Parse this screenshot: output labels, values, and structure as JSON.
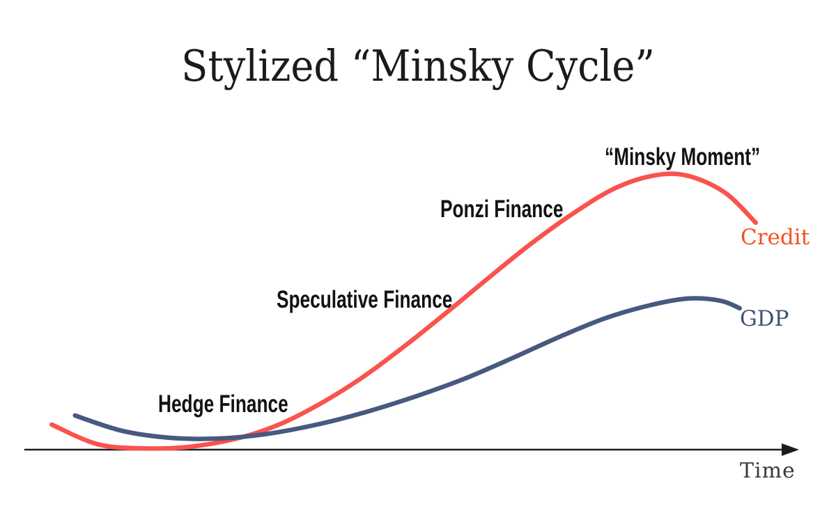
{
  "chart_data": {
    "type": "line",
    "title": "Stylized “Minsky Cycle”",
    "xlabel": "Time",
    "ylabel": "",
    "x_range": [
      0,
      100
    ],
    "y_range": [
      0,
      100
    ],
    "grid": false,
    "legend": "series name labels at right end of each curve",
    "background": "#ffffff",
    "axes": {
      "x_axis_visible": true,
      "y_axis_visible": false,
      "x_axis_arrow": true,
      "color": "#1c1c1c"
    },
    "series": [
      {
        "name": "Credit",
        "color": "#F9534E",
        "label_color": "#F4511F",
        "points": [
          [
            2.8,
            7.4
          ],
          [
            9.1,
            1.6
          ],
          [
            15.3,
            0.4
          ],
          [
            21.5,
            0.8
          ],
          [
            28.2,
            3.3
          ],
          [
            34.0,
            7.4
          ],
          [
            39.7,
            13.6
          ],
          [
            45.5,
            21.4
          ],
          [
            51.2,
            30.5
          ],
          [
            56.9,
            40.3
          ],
          [
            62.7,
            50.6
          ],
          [
            68.4,
            60.5
          ],
          [
            74.2,
            69.5
          ],
          [
            79.9,
            77.0
          ],
          [
            85.2,
            80.9
          ],
          [
            89.9,
            81.1
          ],
          [
            95.2,
            76.1
          ],
          [
            99.5,
            67.1
          ]
        ]
      },
      {
        "name": "GDP",
        "color": "#47597F",
        "label_color": "#3E5277",
        "points": [
          [
            6.0,
            10.1
          ],
          [
            12.4,
            5.6
          ],
          [
            19.1,
            3.5
          ],
          [
            25.8,
            3.3
          ],
          [
            32.5,
            4.7
          ],
          [
            39.2,
            7.4
          ],
          [
            45.9,
            11.1
          ],
          [
            52.6,
            15.6
          ],
          [
            59.3,
            20.8
          ],
          [
            66.0,
            27.0
          ],
          [
            72.7,
            33.5
          ],
          [
            78.9,
            38.9
          ],
          [
            85.2,
            42.8
          ],
          [
            90.4,
            44.7
          ],
          [
            94.7,
            44.0
          ],
          [
            97.3,
            41.8
          ]
        ]
      }
    ],
    "annotations": {
      "hedge": "Hedge Finance",
      "speculative": "Speculative Finance",
      "ponzi": "Ponzi Finance",
      "minsky": "“Minsky Moment”"
    }
  }
}
